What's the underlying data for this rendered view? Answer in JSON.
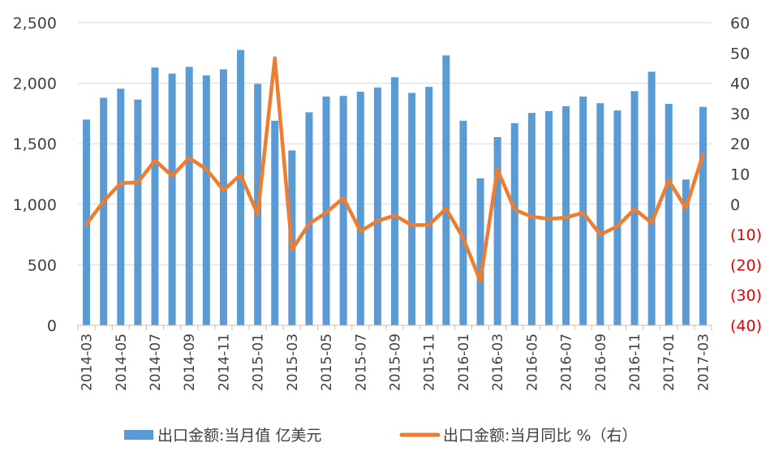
{
  "chart_data": {
    "type": "bar+line",
    "categories": [
      "2014-03",
      "2014-04",
      "2014-05",
      "2014-06",
      "2014-07",
      "2014-08",
      "2014-09",
      "2014-10",
      "2014-11",
      "2014-12",
      "2015-01",
      "2015-02",
      "2015-03",
      "2015-04",
      "2015-05",
      "2015-06",
      "2015-07",
      "2015-08",
      "2015-09",
      "2015-10",
      "2015-11",
      "2015-12",
      "2016-01",
      "2016-02",
      "2016-03",
      "2016-04",
      "2016-05",
      "2016-06",
      "2016-07",
      "2016-08",
      "2016-09",
      "2016-10",
      "2016-11",
      "2016-12",
      "2017-01",
      "2017-02",
      "2017-03"
    ],
    "x_tick_labels": [
      "2014-03",
      "2014-05",
      "2014-07",
      "2014-09",
      "2014-11",
      "2015-01",
      "2015-03",
      "2015-05",
      "2015-07",
      "2015-09",
      "2015-11",
      "2016-01",
      "2016-03",
      "2016-05",
      "2016-07",
      "2016-09",
      "2016-11",
      "2017-01",
      "2017-03"
    ],
    "series": [
      {
        "name": "出口金额:当月值 亿美元",
        "type": "bar",
        "axis": "left",
        "color": "#5b9bd5",
        "values": [
          1700,
          1880,
          1955,
          1865,
          2130,
          2080,
          2135,
          2065,
          2115,
          2275,
          1995,
          1690,
          1445,
          1760,
          1890,
          1895,
          1930,
          1965,
          2050,
          1920,
          1970,
          2230,
          1690,
          1215,
          1555,
          1670,
          1755,
          1770,
          1810,
          1890,
          1835,
          1775,
          1935,
          2095,
          1830,
          1205,
          1805
        ]
      },
      {
        "name": "出口金额:当月同比 %（右）",
        "type": "line",
        "axis": "right",
        "color": "#ed7d31",
        "values": [
          -6.6,
          1.0,
          7.0,
          7.2,
          14.5,
          9.4,
          15.3,
          11.6,
          4.7,
          9.7,
          -3.3,
          48.3,
          -15.0,
          -6.4,
          -2.8,
          2.1,
          -8.9,
          -5.5,
          -3.7,
          -6.9,
          -6.8,
          -1.4,
          -11.2,
          -25.4,
          11.5,
          -1.8,
          -4.1,
          -4.8,
          -4.4,
          -2.8,
          -10.0,
          -7.3,
          -1.6,
          -6.1,
          7.9,
          -1.3,
          16.4
        ]
      }
    ],
    "left_axis": {
      "min": 0,
      "max": 2500,
      "ticks": [
        "0",
        "500",
        "1,000",
        "1,500",
        "2,000",
        "2,500"
      ],
      "tick_values": [
        0,
        500,
        1000,
        1500,
        2000,
        2500
      ]
    },
    "right_axis": {
      "min": -40,
      "max": 60,
      "ticks": [
        "(40)",
        "(30)",
        "(20)",
        "(10)",
        "0",
        "10",
        "20",
        "30",
        "40",
        "50",
        "60"
      ],
      "tick_values": [
        -40,
        -30,
        -20,
        -10,
        0,
        10,
        20,
        30,
        40,
        50,
        60
      ]
    },
    "grid": true,
    "legend_position": "bottom"
  },
  "legend": {
    "bar_label": "出口金额:当月值 亿美元",
    "line_label": "出口金额:当月同比 %（右）"
  }
}
